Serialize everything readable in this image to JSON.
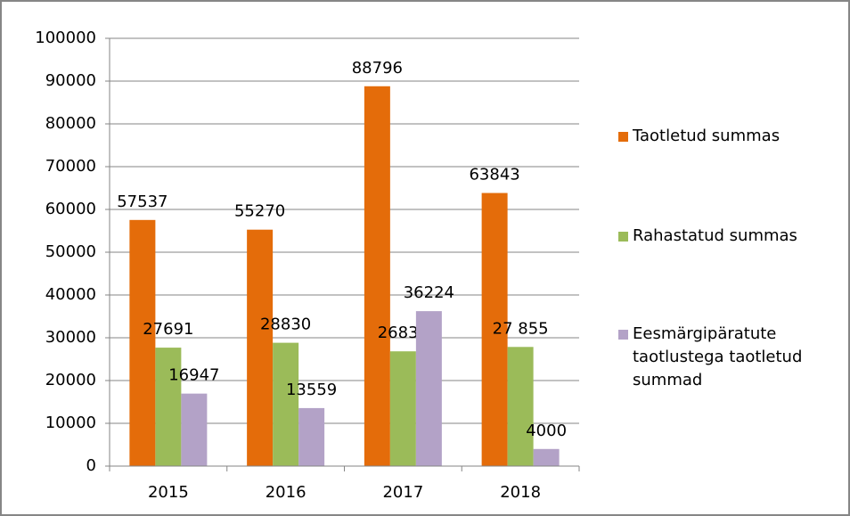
{
  "chart_data": {
    "type": "bar",
    "categories": [
      "2015",
      "2016",
      "2017",
      "2018"
    ],
    "series": [
      {
        "name": "Taotletud summas",
        "color": "#e46c0a",
        "values": [
          57537,
          55270,
          88796,
          63843
        ]
      },
      {
        "name": "Rahastatud summas",
        "color": "#9bbb59",
        "values": [
          27691,
          28830,
          26830,
          27855
        ],
        "value_labels": [
          "27691",
          "28830",
          "26830",
          "27 855"
        ]
      },
      {
        "name": "Eesmärgipäratute taotlustega taotletud summad",
        "color": "#b3a2c7",
        "values": [
          16947,
          13559,
          36224,
          4000
        ]
      }
    ],
    "ylim": [
      0,
      100000
    ],
    "yticks": [
      0,
      10000,
      20000,
      30000,
      40000,
      50000,
      60000,
      70000,
      80000,
      90000,
      100000
    ],
    "grid": true,
    "legend": "right"
  }
}
